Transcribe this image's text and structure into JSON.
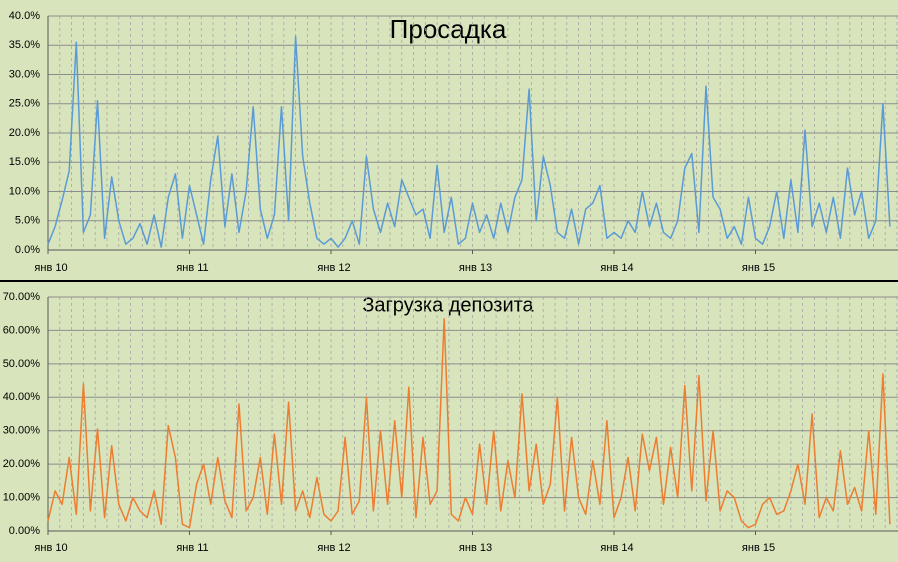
{
  "chart_data": [
    {
      "type": "line",
      "title": "Просадка",
      "x": [
        2010,
        2010.05,
        2010.1,
        2010.15,
        2010.2,
        2010.25,
        2010.3,
        2010.35,
        2010.4,
        2010.45,
        2010.5,
        2010.55,
        2010.6,
        2010.65,
        2010.7,
        2010.75,
        2010.8,
        2010.85,
        2010.9,
        2010.95,
        2011,
        2011.05,
        2011.1,
        2011.15,
        2011.2,
        2011.25,
        2011.3,
        2011.35,
        2011.4,
        2011.45,
        2011.5,
        2011.55,
        2011.6,
        2011.65,
        2011.7,
        2011.75,
        2011.8,
        2011.85,
        2011.9,
        2011.95,
        2012,
        2012.05,
        2012.1,
        2012.15,
        2012.2,
        2012.25,
        2012.3,
        2012.35,
        2012.4,
        2012.45,
        2012.5,
        2012.55,
        2012.6,
        2012.65,
        2012.7,
        2012.75,
        2012.8,
        2012.85,
        2012.9,
        2012.95,
        2013,
        2013.05,
        2013.1,
        2013.15,
        2013.2,
        2013.25,
        2013.3,
        2013.35,
        2013.4,
        2013.45,
        2013.5,
        2013.55,
        2013.6,
        2013.65,
        2013.7,
        2013.75,
        2013.8,
        2013.85,
        2013.9,
        2013.95,
        2014,
        2014.05,
        2014.1,
        2014.15,
        2014.2,
        2014.25,
        2014.3,
        2014.35,
        2014.4,
        2014.45,
        2014.5,
        2014.55,
        2014.6,
        2014.65,
        2014.7,
        2014.75,
        2014.8,
        2014.85,
        2014.9,
        2014.95,
        2015,
        2015.05,
        2015.1,
        2015.15,
        2015.2,
        2015.25,
        2015.3,
        2015.35,
        2015.4,
        2015.45,
        2015.5,
        2015.55,
        2015.6,
        2015.65,
        2015.7,
        2015.75,
        2015.8,
        2015.85,
        2015.9,
        2015.95
      ],
      "series": [
        {
          "color": "#5b9bd5",
          "values": [
            1,
            4,
            8.5,
            13.5,
            35.5,
            3,
            6,
            25.5,
            2,
            12.5,
            5,
            1,
            2,
            4.5,
            1,
            6,
            0.5,
            9,
            13,
            2,
            11,
            6,
            1,
            12,
            19.5,
            4,
            13,
            3,
            10,
            24.5,
            7,
            2,
            6,
            24.5,
            5,
            36.5,
            16,
            8,
            2,
            1,
            2,
            0.5,
            2,
            5,
            1,
            16,
            7,
            3,
            8,
            4,
            12,
            9,
            6,
            7,
            2,
            14.5,
            3,
            9,
            1,
            2,
            8,
            3,
            6,
            2,
            8,
            3,
            9,
            12,
            27.5,
            5,
            16,
            11,
            3,
            2,
            7,
            1,
            7,
            8,
            11,
            2,
            3,
            2,
            5,
            3,
            10,
            4,
            8,
            3,
            2,
            5,
            14,
            16.5,
            3,
            28,
            9,
            7,
            2,
            4,
            1,
            9,
            2,
            1,
            4,
            10,
            2,
            12,
            3,
            20.5,
            4,
            8,
            3,
            9,
            2,
            14,
            6,
            10,
            2,
            5,
            25,
            4
          ]
        }
      ],
      "xlim": [
        2010,
        2016
      ],
      "xticks": [
        {
          "value": 2010,
          "label": "янв 10"
        },
        {
          "value": 2011,
          "label": "янв 11"
        },
        {
          "value": 2012,
          "label": "янв 12"
        },
        {
          "value": 2013,
          "label": "янв 13"
        },
        {
          "value": 2014,
          "label": "янв 14"
        },
        {
          "value": 2015,
          "label": "янв 15"
        }
      ],
      "ylim": [
        0,
        40
      ],
      "yticks": [
        {
          "value": 0,
          "label": "0.0%"
        },
        {
          "value": 5,
          "label": "5.0%"
        },
        {
          "value": 10,
          "label": "10.0%"
        },
        {
          "value": 15,
          "label": "15.0%"
        },
        {
          "value": 20,
          "label": "20.0%"
        },
        {
          "value": 25,
          "label": "25.0%"
        },
        {
          "value": 30,
          "label": "30.0%"
        },
        {
          "value": 35,
          "label": "35.0%"
        },
        {
          "value": 40,
          "label": "40.0%"
        }
      ],
      "grid": true
    },
    {
      "type": "line",
      "title": "Загрузка депозита",
      "x": [
        2010,
        2010.05,
        2010.1,
        2010.15,
        2010.2,
        2010.25,
        2010.3,
        2010.35,
        2010.4,
        2010.45,
        2010.5,
        2010.55,
        2010.6,
        2010.65,
        2010.7,
        2010.75,
        2010.8,
        2010.85,
        2010.9,
        2010.95,
        2011,
        2011.05,
        2011.1,
        2011.15,
        2011.2,
        2011.25,
        2011.3,
        2011.35,
        2011.4,
        2011.45,
        2011.5,
        2011.55,
        2011.6,
        2011.65,
        2011.7,
        2011.75,
        2011.8,
        2011.85,
        2011.9,
        2011.95,
        2012,
        2012.05,
        2012.1,
        2012.15,
        2012.2,
        2012.25,
        2012.3,
        2012.35,
        2012.4,
        2012.45,
        2012.5,
        2012.55,
        2012.6,
        2012.65,
        2012.7,
        2012.75,
        2012.8,
        2012.85,
        2012.9,
        2012.95,
        2013,
        2013.05,
        2013.1,
        2013.15,
        2013.2,
        2013.25,
        2013.3,
        2013.35,
        2013.4,
        2013.45,
        2013.5,
        2013.55,
        2013.6,
        2013.65,
        2013.7,
        2013.75,
        2013.8,
        2013.85,
        2013.9,
        2013.95,
        2014,
        2014.05,
        2014.1,
        2014.15,
        2014.2,
        2014.25,
        2014.3,
        2014.35,
        2014.4,
        2014.45,
        2014.5,
        2014.55,
        2014.6,
        2014.65,
        2014.7,
        2014.75,
        2014.8,
        2014.85,
        2014.9,
        2014.95,
        2015,
        2015.05,
        2015.1,
        2015.15,
        2015.2,
        2015.25,
        2015.3,
        2015.35,
        2015.4,
        2015.45,
        2015.5,
        2015.55,
        2015.6,
        2015.65,
        2015.7,
        2015.75,
        2015.8,
        2015.85,
        2015.9,
        2015.95
      ],
      "series": [
        {
          "color": "#ed7d31",
          "values": [
            3,
            12,
            8,
            22,
            5,
            44,
            6,
            30.5,
            4,
            25.5,
            8,
            3,
            10,
            6,
            4,
            12,
            2,
            31.5,
            22,
            2,
            1,
            14,
            20,
            8,
            22,
            9,
            4,
            38,
            6,
            10,
            22,
            5,
            29,
            8,
            38.5,
            6,
            12,
            4,
            16,
            5,
            3,
            6,
            28,
            5,
            9,
            40,
            6,
            30,
            8,
            33,
            10,
            43,
            4,
            28,
            8,
            12,
            63.5,
            5,
            3,
            10,
            5,
            26,
            8,
            30,
            6,
            21,
            10,
            41,
            12,
            26,
            8,
            14,
            40,
            6,
            28,
            10,
            5,
            21,
            8,
            33,
            4,
            10,
            22,
            6,
            29,
            18,
            28,
            8,
            25,
            10,
            43.5,
            12,
            46.5,
            9,
            30,
            6,
            12,
            10,
            3,
            1,
            2,
            8,
            10,
            5,
            6,
            12,
            20,
            8,
            35,
            4,
            10,
            6,
            24,
            8,
            13,
            6,
            30,
            5,
            47,
            2
          ]
        }
      ],
      "xlim": [
        2010,
        2016
      ],
      "xticks": [
        {
          "value": 2010,
          "label": "янв 10"
        },
        {
          "value": 2011,
          "label": "янв 11"
        },
        {
          "value": 2012,
          "label": "янв 12"
        },
        {
          "value": 2013,
          "label": "янв 13"
        },
        {
          "value": 2014,
          "label": "янв 14"
        },
        {
          "value": 2015,
          "label": "янв 15"
        }
      ],
      "ylim": [
        0,
        70
      ],
      "yticks": [
        {
          "value": 0,
          "label": "0.00%"
        },
        {
          "value": 10,
          "label": "10.00%"
        },
        {
          "value": 20,
          "label": "20.00%"
        },
        {
          "value": 30,
          "label": "30.00%"
        },
        {
          "value": 40,
          "label": "40.00%"
        },
        {
          "value": 50,
          "label": "50.00%"
        },
        {
          "value": 60,
          "label": "60.00%"
        },
        {
          "value": 70,
          "label": "70.00%"
        }
      ],
      "grid": true
    }
  ]
}
